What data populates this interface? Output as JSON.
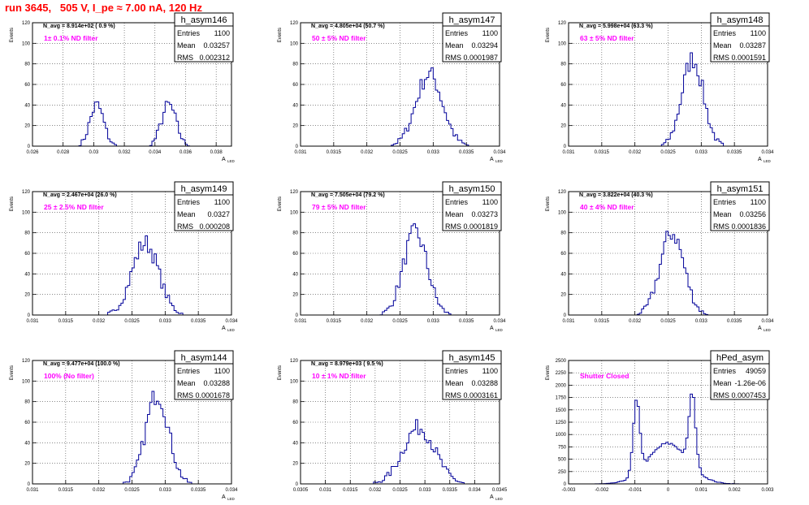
{
  "page_title": "run 3645,   505 V, I_pe ≈ 7.00 nA, 120 Hz",
  "colors": {
    "histogram": "#000099",
    "filter_text": "#ff00ff",
    "title": "#ff0000",
    "frame": "#000000"
  },
  "chart_data": [
    {
      "type": "histogram",
      "name": "h_asym146",
      "navg": "N_avg = 8.914e+02 ( 0.9 %)",
      "filter": "1± 0.1% ND filter",
      "stats": {
        "entries": "1100",
        "mean": "0.03257",
        "rms": "0.002312"
      },
      "xlabel": "A",
      "xlabel_sub": "LED",
      "ylabel": "Events",
      "xlim": [
        0.026,
        0.039
      ],
      "ylim": [
        0,
        120
      ],
      "xticks": [
        "0.026",
        "0.028",
        "0.03",
        "0.032",
        "0.034",
        "0.036",
        "0.038"
      ],
      "yticks": [
        "0",
        "20",
        "40",
        "60",
        "80",
        "100",
        "120"
      ],
      "peaks": [
        {
          "center": 0.0302,
          "sigma": 0.00045,
          "height": 40
        },
        {
          "center": 0.0349,
          "sigma": 0.00048,
          "height": 40
        }
      ]
    },
    {
      "type": "histogram",
      "name": "h_asym147",
      "navg": "N_avg = 4.805e+04 (50.7 %)",
      "filter": "50 ± 5% ND filter",
      "stats": {
        "entries": "1100",
        "mean": "0.03294",
        "rms": "0.0001987"
      },
      "xlabel": "A",
      "xlabel_sub": "LED",
      "ylabel": "Events",
      "xlim": [
        0.031,
        0.034
      ],
      "ylim": [
        0,
        120
      ],
      "xticks": [
        "0.031",
        "0.0315",
        "0.032",
        "0.0325",
        "0.033",
        "0.0335",
        "0.034"
      ],
      "yticks": [
        "0",
        "20",
        "40",
        "60",
        "80",
        "100",
        "120"
      ],
      "peaks": [
        {
          "center": 0.03294,
          "sigma": 0.0002,
          "height": 70
        }
      ]
    },
    {
      "type": "histogram",
      "name": "h_asym148",
      "navg": "N_avg = 5.998e+04 (63.3 %)",
      "filter": "63 ± 5% ND filter",
      "stats": {
        "entries": "1100",
        "mean": "0.03287",
        "rms": "0.0001591"
      },
      "xlabel": "A",
      "xlabel_sub": "LED",
      "ylabel": "Events",
      "xlim": [
        0.031,
        0.034
      ],
      "ylim": [
        0,
        120
      ],
      "xticks": [
        "0.031",
        "0.0315",
        "0.032",
        "0.0325",
        "0.033",
        "0.0335",
        "0.034"
      ],
      "yticks": [
        "0",
        "20",
        "40",
        "60",
        "80",
        "100",
        "120"
      ],
      "peaks": [
        {
          "center": 0.03287,
          "sigma": 0.00016,
          "height": 85
        }
      ]
    },
    {
      "type": "histogram",
      "name": "h_asym149",
      "navg": "N_avg = 2.467e+04 (26.0 %)",
      "filter": "25 ± 2.5% ND filter",
      "stats": {
        "entries": "1100",
        "mean": "0.0327",
        "rms": "0.000208"
      },
      "xlabel": "A",
      "xlabel_sub": "LED",
      "ylabel": "Events",
      "xlim": [
        0.031,
        0.034
      ],
      "ylim": [
        0,
        120
      ],
      "xticks": [
        "0.031",
        "0.0315",
        "0.032",
        "0.0325",
        "0.033",
        "0.0335",
        "0.034"
      ],
      "yticks": [
        "0",
        "20",
        "40",
        "60",
        "80",
        "100",
        "120"
      ],
      "peaks": [
        {
          "center": 0.0327,
          "sigma": 0.0002,
          "height": 70
        }
      ]
    },
    {
      "type": "histogram",
      "name": "h_asym150",
      "navg": "N_avg = 7.505e+04 (79.2 %)",
      "filter": "79 ± 5% ND filter",
      "stats": {
        "entries": "1100",
        "mean": "0.03273",
        "rms": "0.0001819"
      },
      "xlabel": "A",
      "xlabel_sub": "LED",
      "ylabel": "Events",
      "xlim": [
        0.031,
        0.034
      ],
      "ylim": [
        0,
        120
      ],
      "xticks": [
        "0.031",
        "0.0315",
        "0.032",
        "0.0325",
        "0.033",
        "0.0335",
        "0.034"
      ],
      "yticks": [
        "0",
        "20",
        "40",
        "60",
        "80",
        "100",
        "120"
      ],
      "peaks": [
        {
          "center": 0.03273,
          "sigma": 0.00018,
          "height": 80
        }
      ]
    },
    {
      "type": "histogram",
      "name": "h_asym151",
      "navg": "N_avg = 3.822e+04 (40.3 %)",
      "filter": "40 ± 4% ND filter",
      "stats": {
        "entries": "1100",
        "mean": "0.03256",
        "rms": "0.0001836"
      },
      "xlabel": "A",
      "xlabel_sub": "LED",
      "ylabel": "Events",
      "xlim": [
        0.031,
        0.034
      ],
      "ylim": [
        0,
        120
      ],
      "xticks": [
        "0.031",
        "0.0315",
        "0.032",
        "0.0325",
        "0.033",
        "0.0335",
        "0.034"
      ],
      "yticks": [
        "0",
        "20",
        "40",
        "60",
        "80",
        "100",
        "120"
      ],
      "peaks": [
        {
          "center": 0.03256,
          "sigma": 0.00018,
          "height": 80
        }
      ]
    },
    {
      "type": "histogram",
      "name": "h_asym144",
      "navg": "N_avg = 9.477e+04 (100.0 %)",
      "filter": "100% (No filter)",
      "stats": {
        "entries": "1100",
        "mean": "0.03288",
        "rms": "0.0001678"
      },
      "xlabel": "A",
      "xlabel_sub": "LED",
      "ylabel": "Events",
      "xlim": [
        0.031,
        0.034
      ],
      "ylim": [
        0,
        120
      ],
      "xticks": [
        "0.031",
        "0.0315",
        "0.032",
        "0.0325",
        "0.033",
        "0.0335",
        "0.034"
      ],
      "yticks": [
        "0",
        "20",
        "40",
        "60",
        "80",
        "100",
        "120"
      ],
      "peaks": [
        {
          "center": 0.03288,
          "sigma": 0.00017,
          "height": 88
        }
      ]
    },
    {
      "type": "histogram",
      "name": "h_asym145",
      "navg": "N_avg = 8.979e+03 ( 9.5 %)",
      "filter": "10 ± 1% ND filter",
      "stats": {
        "entries": "1100",
        "mean": "0.03288",
        "rms": "0.0003161"
      },
      "xlabel": "A",
      "xlabel_sub": "LED",
      "ylabel": "Events",
      "xlim": [
        0.0305,
        0.0345
      ],
      "ylim": [
        0,
        120
      ],
      "xticks": [
        "0.0305",
        "0.031",
        "0.0315",
        "0.032",
        "0.0325",
        "0.033",
        "0.0335",
        "0.034",
        "0.0345"
      ],
      "yticks": [
        "0",
        "20",
        "40",
        "60",
        "80",
        "100",
        "120"
      ],
      "peaks": [
        {
          "center": 0.03288,
          "sigma": 0.00032,
          "height": 55
        }
      ]
    },
    {
      "type": "histogram",
      "name": "hPed_asym",
      "navg": "",
      "filter": "Shutter Closed",
      "stats": {
        "entries": "49059",
        "mean": "-1.26e-06",
        "rms": "0.0007453"
      },
      "xlabel": "",
      "xlabel_sub": "",
      "ylabel": "Events",
      "xlim": [
        -0.003,
        0.003
      ],
      "ylim": [
        0,
        2500
      ],
      "xticks": [
        "-0.003",
        "-0.002",
        "-0.001",
        "0",
        "0.001",
        "0.002",
        "0.003"
      ],
      "yticks": [
        "0",
        "250",
        "500",
        "750",
        "1000",
        "1250",
        "1500",
        "1750",
        "2000",
        "2250",
        "2500"
      ],
      "peaks": [
        {
          "center": -0.00095,
          "sigma": 0.0001,
          "height": 1450
        },
        {
          "center": 0.00073,
          "sigma": 0.0001,
          "height": 1450
        },
        {
          "center": 0.0,
          "sigma": 0.0006,
          "height": 820
        }
      ]
    }
  ]
}
